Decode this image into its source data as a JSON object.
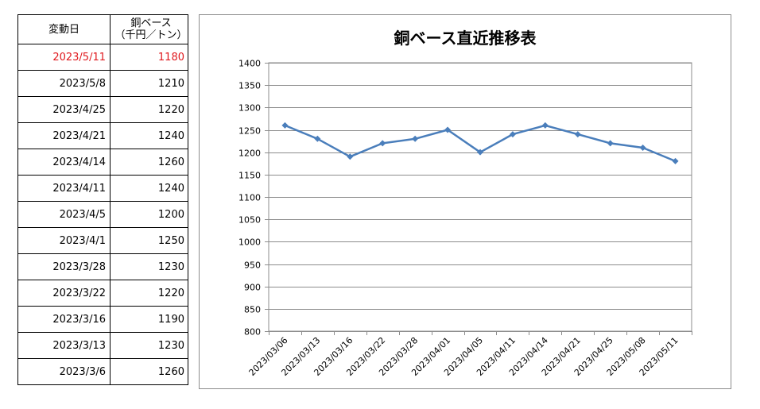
{
  "table": {
    "header": {
      "date": "変動日",
      "price_line1": "銅ベース",
      "price_line2": "（千円／トン）"
    },
    "rows": [
      {
        "date": "2023/5/11",
        "price": "1180",
        "highlight": true
      },
      {
        "date": "2023/5/8",
        "price": "1210"
      },
      {
        "date": "2023/4/25",
        "price": "1220"
      },
      {
        "date": "2023/4/21",
        "price": "1240"
      },
      {
        "date": "2023/4/14",
        "price": "1260"
      },
      {
        "date": "2023/4/11",
        "price": "1240"
      },
      {
        "date": "2023/4/5",
        "price": "1200"
      },
      {
        "date": "2023/4/1",
        "price": "1250"
      },
      {
        "date": "2023/3/28",
        "price": "1230"
      },
      {
        "date": "2023/3/22",
        "price": "1220"
      },
      {
        "date": "2023/3/16",
        "price": "1190"
      },
      {
        "date": "2023/3/13",
        "price": "1230"
      },
      {
        "date": "2023/3/6",
        "price": "1260"
      }
    ],
    "highlight_color": "#e0181d"
  },
  "chart_data": {
    "type": "line",
    "title": "銅ベース直近推移表",
    "categories": [
      "2023/03/06",
      "2023/03/13",
      "2023/03/16",
      "2023/03/22",
      "2023/03/28",
      "2023/04/01",
      "2023/04/05",
      "2023/04/11",
      "2023/04/14",
      "2023/04/21",
      "2023/04/25",
      "2023/05/08",
      "2023/05/11"
    ],
    "series": [
      {
        "values": [
          1260,
          1230,
          1190,
          1220,
          1230,
          1250,
          1200,
          1240,
          1260,
          1240,
          1220,
          1210,
          1180
        ],
        "color": "#4a7ebb"
      }
    ],
    "ylim": [
      800,
      1400
    ],
    "yticks": [
      800,
      850,
      900,
      950,
      1000,
      1050,
      1100,
      1150,
      1200,
      1250,
      1300,
      1350,
      1400
    ],
    "grid": true,
    "xlabel": "",
    "ylabel": "",
    "legend": "none"
  }
}
